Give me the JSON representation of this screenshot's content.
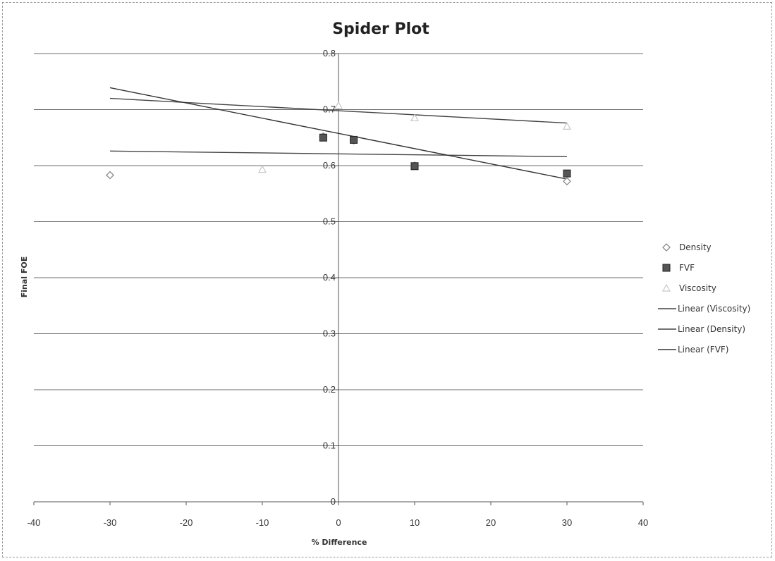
{
  "chart_data": {
    "type": "scatter",
    "title": "Spider Plot",
    "xlabel": "% Difference",
    "ylabel": "Final FOE",
    "xlim": [
      -40,
      40
    ],
    "ylim": [
      0,
      0.8
    ],
    "x_ticks": [
      -40,
      -30,
      -20,
      -10,
      0,
      10,
      20,
      30,
      40
    ],
    "y_ticks": [
      0,
      0.1,
      0.2,
      0.3,
      0.4,
      0.5,
      0.6,
      0.7,
      0.8
    ],
    "x_tick_labels": [
      "-40",
      "-30",
      "-20",
      "-10",
      "0",
      "10",
      "20",
      "30",
      "40"
    ],
    "y_tick_labels": [
      "0",
      "0.1",
      "0.2",
      "0.3",
      "0.4",
      "0.5",
      "0.6",
      "0.7",
      "0.8"
    ],
    "grid": "horizontal",
    "legend_position": "right",
    "series": [
      {
        "name": "Density",
        "marker": "diamond",
        "color": "#8a8a8a",
        "x": [
          -30,
          -2,
          2,
          10,
          30
        ],
        "y": [
          0.583,
          0.652,
          0.645,
          0.6,
          0.572
        ]
      },
      {
        "name": "FVF",
        "marker": "square",
        "color": "#555555",
        "x": [
          -2,
          2,
          10,
          30
        ],
        "y": [
          0.65,
          0.646,
          0.599,
          0.586
        ]
      },
      {
        "name": "Viscosity",
        "marker": "triangle",
        "color": "#c8c8c8",
        "x": [
          -10,
          0,
          10,
          30
        ],
        "y": [
          0.593,
          0.707,
          0.685,
          0.67
        ]
      }
    ],
    "trendlines": [
      {
        "name": "Linear (Viscosity)",
        "color": "#444444",
        "x": [
          -30,
          30
        ],
        "y": [
          0.72,
          0.676
        ]
      },
      {
        "name": "Linear (Density)",
        "color": "#444444",
        "x": [
          -30,
          30
        ],
        "y": [
          0.626,
          0.616
        ]
      },
      {
        "name": "Linear (FVF)",
        "color": "#333333",
        "x": [
          -30,
          30
        ],
        "y": [
          0.739,
          0.576
        ]
      }
    ]
  }
}
